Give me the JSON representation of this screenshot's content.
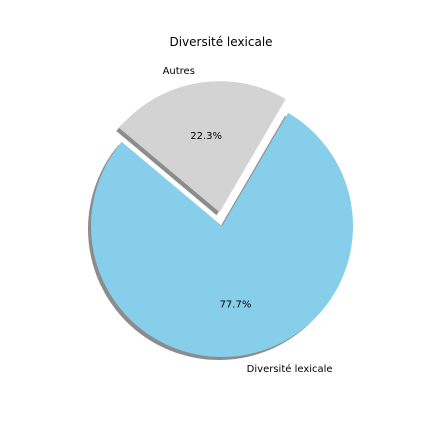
{
  "chart_data": {
    "type": "pie",
    "title": "Diversité lexicale",
    "slices": [
      {
        "label": "Diversité lexicale",
        "value": 77.7,
        "pct_label": "77.7%",
        "color": "#87ceeb",
        "exploded": false
      },
      {
        "label": "Autres",
        "value": 22.3,
        "pct_label": "22.3%",
        "color": "#d3d3d3",
        "exploded": true
      }
    ],
    "shadow": true
  }
}
